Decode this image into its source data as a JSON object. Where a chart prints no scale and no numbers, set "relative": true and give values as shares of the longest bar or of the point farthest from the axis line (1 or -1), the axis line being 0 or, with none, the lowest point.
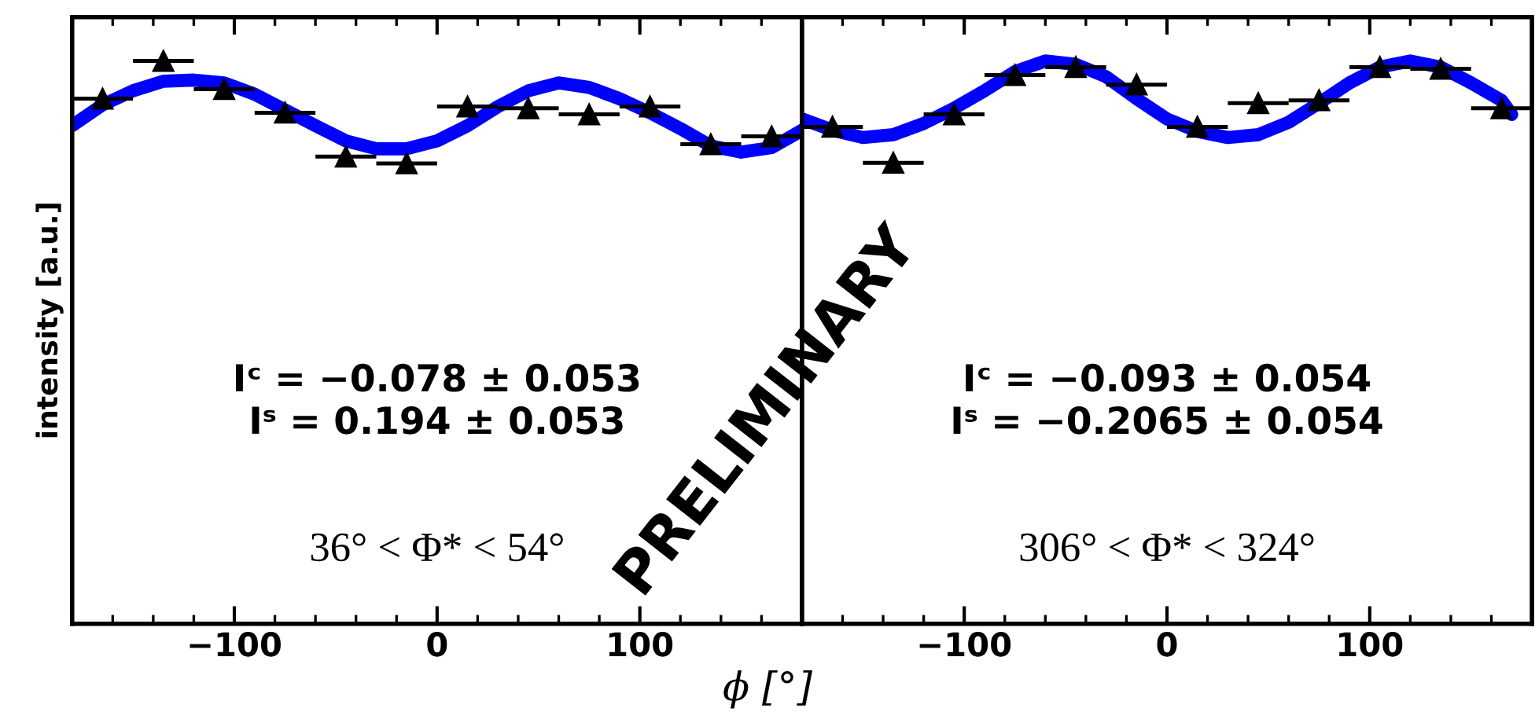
{
  "chart_data": [
    {
      "type": "scatter",
      "relative": true,
      "xlabel": "ϕ [°]",
      "ylabel": "intensity [a.u.]",
      "x": [
        -165,
        -135,
        -105,
        -75,
        -45,
        -15,
        15,
        45,
        75,
        105,
        135,
        165
      ],
      "xlim": [
        -180,
        180
      ],
      "xticks": [
        {
          "value": -100,
          "label": "−100"
        },
        0,
        100
      ],
      "tick_labels": "x",
      "series": [
        {
          "color": "#000000",
          "marker": "triangle",
          "values": [
            0.933,
            1.0,
            0.95,
            0.908,
            0.83,
            0.818,
            0.919,
            0.916,
            0.905,
            0.919,
            0.852,
            0.866
          ],
          "xerrors": [
            15,
            15,
            15,
            15,
            15,
            15,
            15,
            15,
            15,
            15,
            15,
            15
          ]
        },
        {
          "type": "line",
          "color": "#0000ff",
          "x": [
            -180,
            -165,
            -150,
            -135,
            -120,
            -105,
            -90,
            -75,
            -60,
            -45,
            -30,
            -15,
            0,
            15,
            30,
            45,
            60,
            75,
            90,
            105,
            120,
            135,
            150,
            165,
            180
          ],
          "values": [
            0.885,
            0.922,
            0.947,
            0.964,
            0.966,
            0.961,
            0.941,
            0.913,
            0.885,
            0.858,
            0.844,
            0.844,
            0.858,
            0.885,
            0.919,
            0.947,
            0.961,
            0.953,
            0.933,
            0.908,
            0.88,
            0.849,
            0.838,
            0.846,
            0.877
          ]
        }
      ],
      "annotations": [
        "Iᶜ = −0.078 ± 0.053",
        "Iˢ = 0.194 ± 0.053",
        "36° < Φ* < 54°",
        "PRELIMINARY"
      ]
    },
    {
      "type": "scatter",
      "relative": true,
      "x": [
        -165,
        -135,
        -105,
        -75,
        -45,
        -15,
        15,
        45,
        75,
        105,
        135,
        165
      ],
      "xlim": [
        -180,
        180
      ],
      "xticks": [
        {
          "value": -100,
          "label": "−100"
        },
        0,
        100
      ],
      "tick_labels": "x",
      "series": [
        {
          "color": "#000000",
          "marker": "triangle",
          "values": [
            0.883,
            0.819,
            0.905,
            0.975,
            0.989,
            0.958,
            0.883,
            0.925,
            0.93,
            0.989,
            0.986,
            0.916
          ],
          "xerrors": [
            15,
            15,
            15,
            15,
            15,
            15,
            15,
            15,
            15,
            15,
            15,
            15
          ]
        },
        {
          "type": "line",
          "color": "#0000ff",
          "x": [
            -180,
            -165,
            -150,
            -135,
            -120,
            -105,
            -90,
            -75,
            -60,
            -45,
            -30,
            -15,
            0,
            15,
            30,
            45,
            60,
            75,
            90,
            105,
            120,
            135,
            150,
            165,
            170
          ],
          "values": [
            0.897,
            0.877,
            0.864,
            0.869,
            0.889,
            0.916,
            0.947,
            0.981,
            1.0,
            0.994,
            0.972,
            0.933,
            0.897,
            0.875,
            0.864,
            0.869,
            0.891,
            0.925,
            0.961,
            0.989,
            1.0,
            0.989,
            0.961,
            0.93,
            0.905
          ]
        }
      ],
      "annotations": [
        "Iᶜ = −0.093 ± 0.054",
        "Iˢ = −0.2065 ± 0.054",
        "306° < Φ* < 324°"
      ]
    }
  ]
}
